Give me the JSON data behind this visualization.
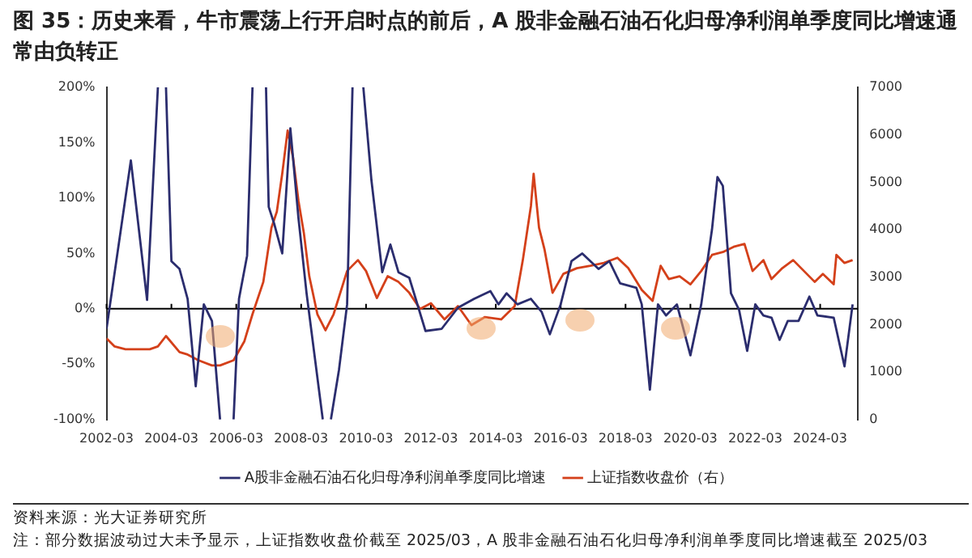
{
  "chart_data": {
    "type": "line",
    "title": "图 35：历史来看，牛市震荡上行开启时点的前后，A 股非金融石油石化归母净利润单季度同比增速通常由负转正",
    "xlim": [
      "2002-03",
      "2025-05"
    ],
    "xticks": [
      "2002-03",
      "2004-03",
      "2006-03",
      "2008-03",
      "2010-03",
      "2012-03",
      "2014-03",
      "2016-03",
      "2018-03",
      "2020-03",
      "2022-03",
      "2024-03"
    ],
    "ylim": [
      -100,
      200
    ],
    "yticks": [
      {
        "value": -100,
        "label": "-100%"
      },
      {
        "value": -50,
        "label": "-50%"
      },
      {
        "value": 0,
        "label": "0%"
      },
      {
        "value": 50,
        "label": "50%"
      },
      {
        "value": 100,
        "label": "100%"
      },
      {
        "value": 150,
        "label": "150%"
      },
      {
        "value": 200,
        "label": "200%"
      }
    ],
    "y2lim": [
      0,
      7000
    ],
    "y2ticks": [
      0,
      1000,
      2000,
      3000,
      4000,
      5000,
      6000,
      7000
    ],
    "grid": false,
    "legend": "bottom",
    "marker": "none",
    "line_style": "solid",
    "ref_lines": [
      {
        "axis": "y",
        "value": 0,
        "color": "#000000"
      }
    ],
    "series": [
      {
        "name": "A股非金融石油石化归母净利润单季度同比增速",
        "color": "#2b2d6e",
        "axis": "y",
        "x": [
          "2002-03",
          "2002-12",
          "2003-06",
          "2003-10",
          "2003-12",
          "2004-01",
          "2004-03",
          "2004-06",
          "2004-09",
          "2004-12",
          "2005-03",
          "2005-06",
          "2005-09",
          "2005-12",
          "2006-02",
          "2006-04",
          "2006-07",
          "2006-09",
          "2006-12",
          "2007-02",
          "2007-03",
          "2007-05",
          "2007-08",
          "2007-11",
          "2008-02",
          "2008-05",
          "2008-11",
          "2008-12",
          "2009-02",
          "2009-05",
          "2009-08",
          "2009-10",
          "2009-12",
          "2010-02",
          "2010-05",
          "2010-09",
          "2010-12",
          "2011-03",
          "2011-07",
          "2012-01",
          "2012-07",
          "2013-01",
          "2013-07",
          "2014-01",
          "2014-04",
          "2014-07",
          "2014-11",
          "2015-04",
          "2015-08",
          "2015-11",
          "2016-03",
          "2016-07",
          "2016-11",
          "2017-05",
          "2017-09",
          "2018-01",
          "2018-07",
          "2018-09",
          "2018-12",
          "2019-03",
          "2019-06",
          "2019-10",
          "2020-03",
          "2020-07",
          "2020-11",
          "2021-01",
          "2021-03",
          "2021-06",
          "2021-09",
          "2021-12",
          "2022-03",
          "2022-06",
          "2022-09",
          "2022-12",
          "2023-03",
          "2023-07",
          "2023-11",
          "2024-02",
          "2024-08",
          "2024-12",
          "2025-03"
        ],
        "values": [
          -18,
          134,
          8,
          200,
          null,
          200,
          43,
          36,
          9,
          -70,
          4,
          -11,
          -100,
          null,
          -100,
          9,
          48,
          200,
          null,
          200,
          92,
          77,
          50,
          163,
          82,
          14,
          -100,
          null,
          -100,
          -55,
          4,
          200,
          null,
          200,
          116,
          33,
          58,
          33,
          28,
          -20,
          -18,
          1,
          9,
          16,
          4,
          14,
          4,
          9,
          -3,
          -23,
          4,
          43,
          50,
          36,
          43,
          23,
          19,
          4,
          -73,
          4,
          -6,
          4,
          -42,
          4,
          72,
          119,
          111,
          14,
          -1,
          -38,
          4,
          -6,
          -8,
          -28,
          -11,
          -11,
          11,
          -6,
          -8,
          -52,
          4
        ]
      },
      {
        "name": "上证指数收盘价（右）",
        "color": "#d4401a",
        "axis": "y2",
        "x": [
          "2002-03",
          "2002-06",
          "2002-10",
          "2003-02",
          "2003-07",
          "2003-10",
          "2004-01",
          "2004-06",
          "2004-09",
          "2005-01",
          "2005-06",
          "2005-09",
          "2006-02",
          "2006-06",
          "2006-09",
          "2007-01",
          "2007-04",
          "2007-06",
          "2007-08",
          "2007-10",
          "2007-12",
          "2008-02",
          "2008-04",
          "2008-06",
          "2008-09",
          "2008-12",
          "2009-03",
          "2009-08",
          "2009-12",
          "2010-03",
          "2010-07",
          "2010-11",
          "2011-03",
          "2011-07",
          "2011-11",
          "2012-03",
          "2012-08",
          "2013-01",
          "2013-06",
          "2013-11",
          "2014-05",
          "2014-10",
          "2015-01",
          "2015-04",
          "2015-05",
          "2015-07",
          "2015-09",
          "2015-12",
          "2016-04",
          "2016-09",
          "2017-02",
          "2017-07",
          "2017-12",
          "2018-04",
          "2018-09",
          "2019-01",
          "2019-04",
          "2019-07",
          "2019-11",
          "2020-03",
          "2020-07",
          "2020-11",
          "2021-03",
          "2021-07",
          "2021-11",
          "2022-02",
          "2022-06",
          "2022-09",
          "2023-01",
          "2023-05",
          "2023-09",
          "2024-01",
          "2024-04",
          "2024-08",
          "2024-09",
          "2024-12",
          "2025-03"
        ],
        "values": [
          1710,
          1540,
          1480,
          1480,
          1480,
          1540,
          1760,
          1420,
          1370,
          1250,
          1140,
          1140,
          1250,
          1650,
          2220,
          2900,
          4040,
          4380,
          5180,
          6090,
          5520,
          4610,
          3930,
          3020,
          2220,
          1880,
          2220,
          3130,
          3360,
          3130,
          2560,
          3020,
          2900,
          2670,
          2330,
          2450,
          2110,
          2390,
          1990,
          2160,
          2110,
          2390,
          3360,
          4500,
          5180,
          4040,
          3590,
          2670,
          3070,
          3190,
          3240,
          3300,
          3410,
          3190,
          2730,
          2500,
          3240,
          2960,
          3020,
          2850,
          3130,
          3470,
          3530,
          3640,
          3700,
          3130,
          3360,
          2960,
          3190,
          3360,
          3130,
          2900,
          3070,
          2850,
          3470,
          3300,
          3360
        ]
      }
    ],
    "annotations": [
      "资料来源：光大证券研究所",
      "注：部分数据波动过大未予显示，上证指数收盘价截至 2025/03，A 股非金融石油石化归母净利润单季度同比增速截至 2025/03"
    ]
  }
}
